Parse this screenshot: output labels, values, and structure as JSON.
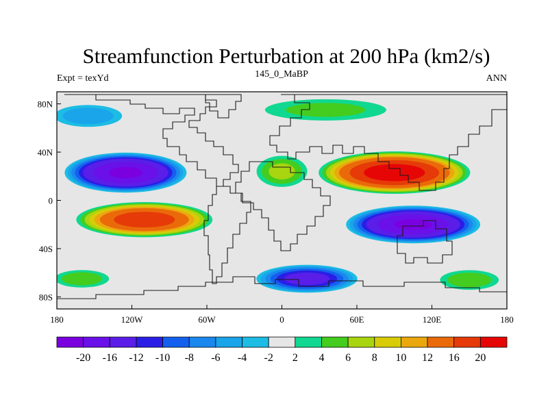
{
  "title": "Streamfunction Perturbation at 200 hPa (km2/s)",
  "subtitle_left": "Expt = texYd",
  "subtitle_center": "145_0_MaBP",
  "subtitle_right": "ANN",
  "map": {
    "projection": "cylindrical-equidistant",
    "lon_range": [
      -180,
      180
    ],
    "lat_range": [
      -90,
      90
    ],
    "x_ticks": [
      "180",
      "120W",
      "60W",
      "0",
      "60E",
      "120E",
      "180"
    ],
    "y_ticks": [
      "80N",
      "40N",
      "0",
      "40S",
      "80S"
    ],
    "y_tick_values": [
      80,
      40,
      0,
      -40,
      -80
    ],
    "background_color": "#e6e6e6"
  },
  "colorbar": {
    "colors": [
      "#7a00e0",
      "#6a10e8",
      "#5a1ee8",
      "#2a1ee6",
      "#1460ee",
      "#1a88ee",
      "#1aa4ea",
      "#1cbce4",
      "#e6e6e6",
      "#10d890",
      "#44cc1e",
      "#a8d410",
      "#d8cc08",
      "#eaa80e",
      "#ea6a0a",
      "#e63a08",
      "#e60606"
    ],
    "labels": [
      "-20",
      "-16",
      "-12",
      "-10",
      "-8",
      "-6",
      "-4",
      "-2",
      "2",
      "4",
      "6",
      "8",
      "10",
      "12",
      "16",
      "20"
    ]
  },
  "features": [
    {
      "lon": -125,
      "lat": 23,
      "value": -20,
      "rx": 50,
      "ry": 17,
      "name": "negative center North Pacific"
    },
    {
      "lon": -110,
      "lat": -16,
      "value": 18,
      "rx": 56,
      "ry": 15,
      "name": "positive center South Pacific"
    },
    {
      "lon": 90,
      "lat": 23,
      "value": 22,
      "rx": 62,
      "ry": 18,
      "name": "positive center Asia"
    },
    {
      "lon": 105,
      "lat": -20,
      "value": -20,
      "rx": 55,
      "ry": 16,
      "name": "negative center Indian Ocean"
    },
    {
      "lon": 20,
      "lat": -65,
      "value": -13,
      "rx": 42,
      "ry": 12,
      "name": "negative center Southern Ocean"
    },
    {
      "lon": 35,
      "lat": 75,
      "value": 4,
      "rx": 55,
      "ry": 10,
      "name": "positive band Arctic"
    },
    {
      "lon": -155,
      "lat": 70,
      "value": -5,
      "rx": 30,
      "ry": 10,
      "name": "negative Arctic west"
    },
    {
      "lon": 0,
      "lat": 24,
      "value": 6,
      "rx": 22,
      "ry": 14,
      "name": "positive Atlantic"
    },
    {
      "lon": 150,
      "lat": -66,
      "value": 5,
      "rx": 26,
      "ry": 9,
      "name": "positive south-east"
    },
    {
      "lon": -160,
      "lat": -65,
      "value": 5,
      "rx": 24,
      "ry": 8,
      "name": "positive south-west"
    }
  ]
}
